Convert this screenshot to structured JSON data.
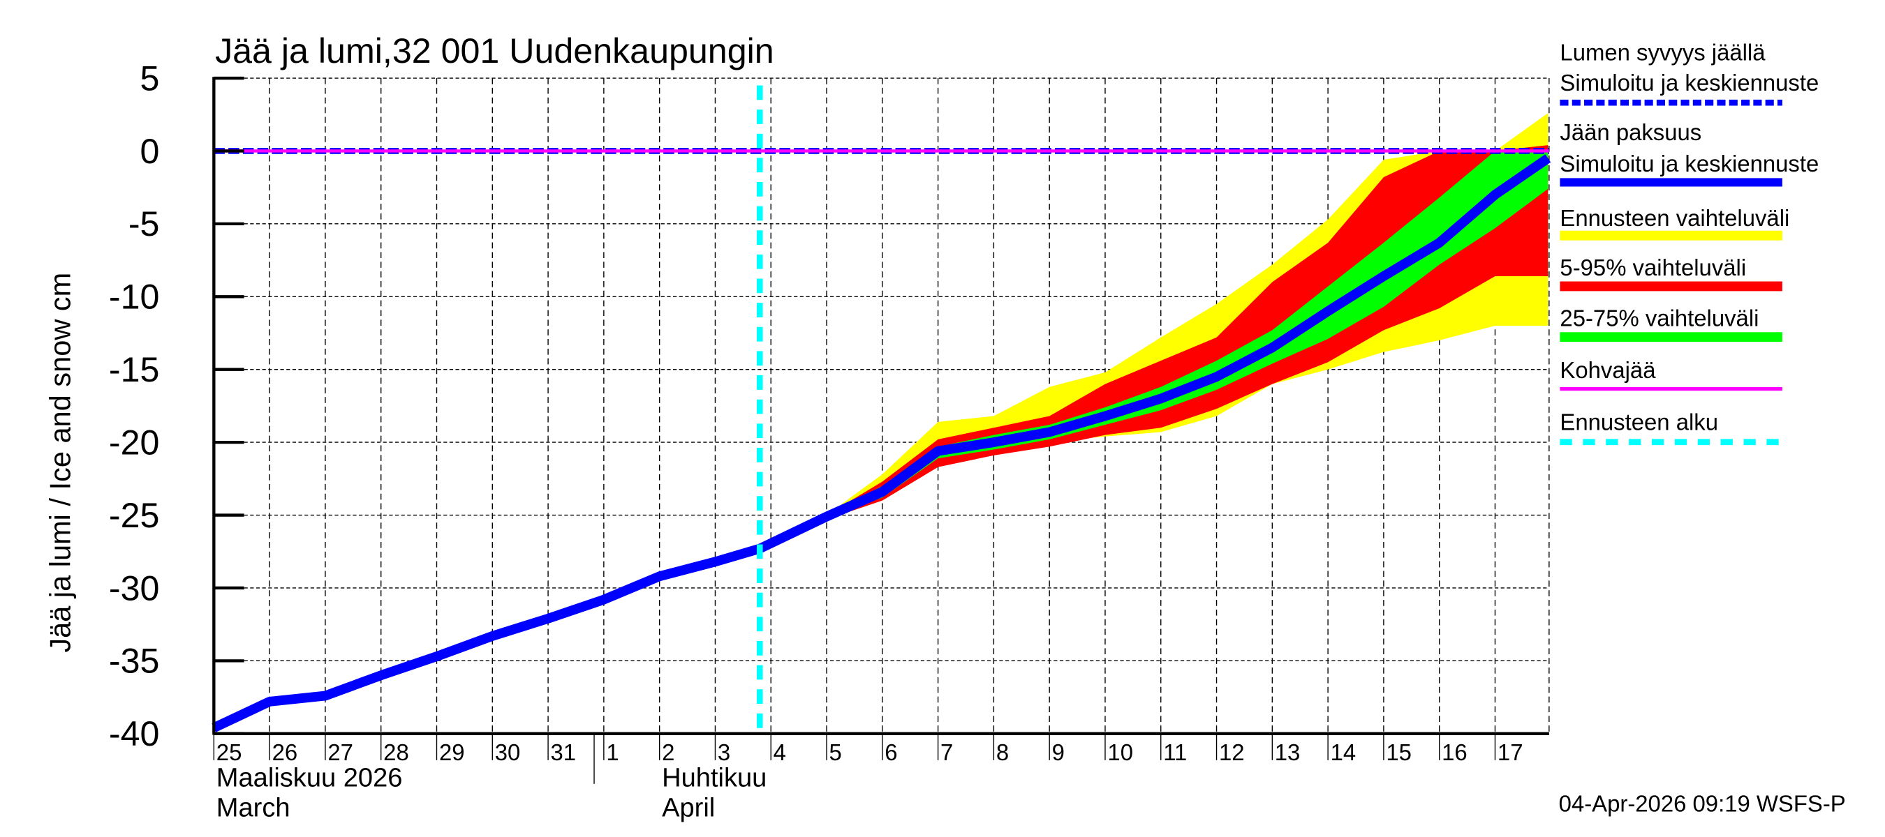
{
  "chart_data": {
    "type": "area",
    "title": "Jää ja lumi,32 001 Uudenkaupungin",
    "ylabel": "Jää ja lumi / Ice and snow    cm",
    "xlabel": "",
    "ylim": [
      -40,
      5
    ],
    "yticks": [
      5,
      0,
      -5,
      -10,
      -15,
      -20,
      -25,
      -30,
      -35,
      -40
    ],
    "grid": true,
    "legend_position": "right",
    "x_tick_labels": [
      "25",
      "26",
      "27",
      "28",
      "29",
      "30",
      "31",
      "1",
      "2",
      "3",
      "4",
      "5",
      "6",
      "7",
      "8",
      "9",
      "10",
      "11",
      "12",
      "13",
      "14",
      "15",
      "16",
      "17"
    ],
    "month_labels": [
      {
        "fi": "Maaliskuu 2026",
        "en": "March",
        "start_index": 0
      },
      {
        "fi": "Huhtikuu",
        "en": "April",
        "start_index": 8
      }
    ],
    "forecast_start_index": 9.8,
    "x_days": [
      0,
      1,
      2,
      3,
      4,
      5,
      6,
      7,
      8,
      9,
      9.8,
      11,
      12,
      13,
      14,
      15,
      16,
      17,
      18,
      19,
      20,
      21,
      22,
      23,
      23.95
    ],
    "series": [
      {
        "name": "Jään paksuus – Simuloitu ja keskiennuste",
        "color": "#0000ff",
        "x": [
          0,
          1,
          2,
          3,
          4,
          5,
          6,
          7,
          8,
          9,
          9.8,
          11,
          12,
          13,
          14,
          15,
          16,
          17,
          18,
          19,
          20,
          21,
          22,
          23,
          23.95
        ],
        "values": [
          -39.6,
          -37.8,
          -37.4,
          -36,
          -34.7,
          -33.3,
          -32.1,
          -30.8,
          -29.2,
          -28.2,
          -27.3,
          -25.1,
          -23.4,
          -20.6,
          -20,
          -19.3,
          -18.2,
          -17,
          -15.5,
          -13.5,
          -11,
          -8.6,
          -6.3,
          -3,
          -0.5
        ]
      },
      {
        "name": "Lumen syvyys jäällä – Simuloitu ja keskiennuste",
        "color": "#0000ff",
        "style": "dashed",
        "x": [
          0,
          23.95
        ],
        "values": [
          0,
          0
        ]
      },
      {
        "name": "Kohvajää",
        "color": "#ff00ff",
        "x": [
          0,
          23.95
        ],
        "values": [
          0,
          0
        ]
      },
      {
        "name": "Ennusteen vaihteluväli",
        "color": "#ffff00",
        "x": [
          9.8,
          11,
          12,
          13,
          14,
          15,
          16,
          17,
          18,
          19,
          20,
          21,
          22,
          23,
          23.95
        ],
        "upper": [
          -27,
          -25,
          -22.2,
          -18.6,
          -18.2,
          -16.2,
          -15.2,
          -12.8,
          -10.5,
          -7.8,
          -4.7,
          -0.6,
          0,
          0,
          2.6
        ],
        "lower": [
          -27.5,
          -25.3,
          -24,
          -21.5,
          -20.6,
          -20,
          -19.6,
          -19.3,
          -18.2,
          -16,
          -15,
          -13.8,
          -13,
          -12,
          -12
        ]
      },
      {
        "name": "5-95% vaihteluväli",
        "color": "#ff0000",
        "x": [
          9.8,
          11,
          12,
          13,
          14,
          15,
          16,
          17,
          18,
          19,
          20,
          21,
          22,
          23,
          23.95
        ],
        "upper": [
          -27.1,
          -25,
          -22.7,
          -19.8,
          -19,
          -18.2,
          -16,
          -14.4,
          -12.8,
          -9,
          -6.3,
          -1.8,
          0,
          0,
          0.4
        ],
        "lower": [
          -27.5,
          -25.3,
          -24,
          -21.7,
          -20.9,
          -20.3,
          -19.5,
          -19,
          -17.7,
          -16,
          -14.5,
          -12.3,
          -10.8,
          -8.6,
          -8.6
        ]
      },
      {
        "name": "25-75% vaihteluväli",
        "color": "#00ff00",
        "x": [
          9.8,
          11,
          12,
          13,
          14,
          15,
          16,
          17,
          18,
          19,
          20,
          21,
          22,
          23,
          23.95
        ],
        "upper": [
          -27.2,
          -25,
          -23,
          -20.3,
          -19.5,
          -18.8,
          -17.6,
          -16.2,
          -14.4,
          -12.3,
          -9.3,
          -6.3,
          -3.2,
          0,
          0
        ],
        "lower": [
          -27.4,
          -25.2,
          -23.8,
          -21.1,
          -20.5,
          -19.8,
          -18.8,
          -17.8,
          -16.4,
          -14.6,
          -12.9,
          -10.7,
          -7.8,
          -5.3,
          -2.6
        ]
      },
      {
        "name": "Ennusteen alku",
        "color": "#00ffff",
        "style": "dashed-vertical",
        "x": [
          9.8,
          9.8
        ],
        "values": [
          5,
          -40
        ]
      }
    ]
  },
  "legend": {
    "items": [
      {
        "line1": "Lumen syvyys jäällä",
        "line2": "Simuloitu ja keskiennuste",
        "color": "#0000ff",
        "style": "dashed"
      },
      {
        "line1": "Jään paksuus",
        "line2": "Simuloitu ja keskiennuste",
        "color": "#0000ff",
        "style": "solid-thick"
      },
      {
        "line1": "Ennusteen vaihteluväli",
        "color": "#ffff00",
        "style": "band"
      },
      {
        "line1": "5-95% vaihteluväli",
        "color": "#ff0000",
        "style": "band"
      },
      {
        "line1": "25-75% vaihteluväli",
        "color": "#00ff00",
        "style": "band"
      },
      {
        "line1": "Kohvajää",
        "color": "#ff00ff",
        "style": "solid"
      },
      {
        "line1": "Ennusteen alku",
        "color": "#00ffff",
        "style": "dashed"
      }
    ]
  },
  "footer": {
    "timestamp": "04-Apr-2026 09:19 WSFS-P"
  }
}
